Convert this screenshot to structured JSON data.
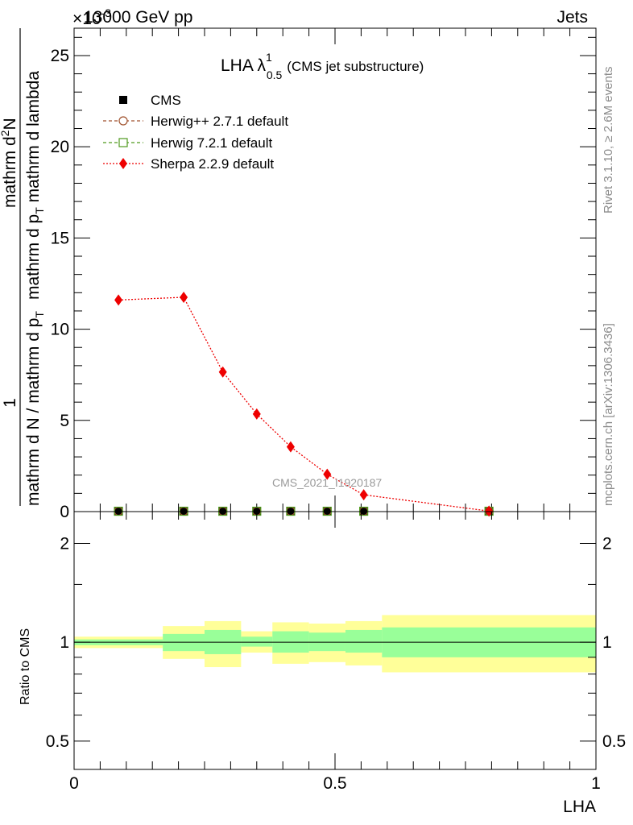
{
  "header": {
    "process": "13000 GeV pp",
    "category": "Jets",
    "exponent_label": "×10",
    "exponent_sup": "-3"
  },
  "side_text": {
    "rivet": "Rivet 3.1.10, ≥ 2.6M events",
    "site": "mcplots.cern.ch [arXiv:1306.3436]"
  },
  "watermark": "CMS_2021_I1920187",
  "chart_data": [
    {
      "type": "line",
      "title": "LHA λ",
      "title_sup": "1",
      "title_sub": "0.5",
      "title_suffix": "(CMS jet substructure)",
      "ylabel_numerator": "1",
      "ylabel_denominator": "mathrm d N / mathrm d p",
      "ylabel_denominator_sub": "T",
      "ylabel_right": "mathrm d",
      "ylabel_right_sup": "2",
      "ylabel_right_rest": "N",
      "ylabel_right_bottom": "mathrm d p",
      "ylabel_right_bottom_sub": "T",
      "ylabel_right_bottom_rest": " mathrm d lambda",
      "xlim": [
        0,
        1
      ],
      "ylim": [
        0,
        26.5
      ],
      "yticks": [
        0,
        5,
        10,
        15,
        20,
        25
      ],
      "ytick_labels": [
        "0",
        "5",
        "10",
        "15",
        "20",
        "25"
      ],
      "legend_position": "top-left",
      "series": [
        {
          "name": "CMS",
          "style": "marker-square",
          "color": "#000000",
          "x": [
            0.085,
            0.21,
            0.285,
            0.35,
            0.415,
            0.485,
            0.555,
            0.795
          ],
          "y": [
            0.02,
            0.02,
            0.02,
            0.02,
            0.02,
            0.02,
            0.02,
            0.02
          ]
        },
        {
          "name": "Herwig++ 2.7.1 default",
          "style": "dashed-circle",
          "color": "#a0522d",
          "x": [
            0.085,
            0.21,
            0.285,
            0.35,
            0.415,
            0.485,
            0.555,
            0.795
          ],
          "y": [
            0.02,
            0.02,
            0.02,
            0.02,
            0.02,
            0.02,
            0.02,
            0.02
          ]
        },
        {
          "name": "Herwig 7.2.1 default",
          "style": "dashed-square",
          "color": "#4f9a1e",
          "x": [
            0.085,
            0.21,
            0.285,
            0.35,
            0.415,
            0.485,
            0.555,
            0.795
          ],
          "y": [
            0.02,
            0.02,
            0.02,
            0.02,
            0.02,
            0.02,
            0.02,
            0.02
          ]
        },
        {
          "name": "Sherpa 2.2.9 default",
          "style": "dotted-diamond",
          "color": "#ee0000",
          "x": [
            0.085,
            0.21,
            0.285,
            0.35,
            0.415,
            0.485,
            0.555,
            0.795
          ],
          "y": [
            11.6,
            11.75,
            7.65,
            5.35,
            3.55,
            2.05,
            0.92,
            0.03
          ]
        }
      ]
    },
    {
      "type": "area",
      "ylabel": "Ratio to CMS",
      "xlabel": "LHA",
      "xlim": [
        0,
        1
      ],
      "ylim": [
        0.41,
        2.5
      ],
      "log_scale_y": true,
      "xticks": [
        0,
        0.5,
        1
      ],
      "xtick_labels": [
        "0",
        "0.5",
        "1"
      ],
      "yticks": [
        0.5,
        1,
        2
      ],
      "ytick_labels": [
        "0.5",
        "1",
        "2"
      ],
      "reference_line": 1,
      "bins": [
        {
          "x0": 0.0,
          "x1": 0.17,
          "yellow": [
            0.96,
            1.04
          ],
          "green": [
            0.98,
            1.02
          ]
        },
        {
          "x0": 0.17,
          "x1": 0.25,
          "yellow": [
            0.89,
            1.12
          ],
          "green": [
            0.94,
            1.06
          ]
        },
        {
          "x0": 0.25,
          "x1": 0.32,
          "yellow": [
            0.84,
            1.16
          ],
          "green": [
            0.92,
            1.09
          ]
        },
        {
          "x0": 0.32,
          "x1": 0.38,
          "yellow": [
            0.93,
            1.08
          ],
          "green": [
            0.97,
            1.04
          ]
        },
        {
          "x0": 0.38,
          "x1": 0.45,
          "yellow": [
            0.86,
            1.15
          ],
          "green": [
            0.93,
            1.08
          ]
        },
        {
          "x0": 0.45,
          "x1": 0.52,
          "yellow": [
            0.87,
            1.14
          ],
          "green": [
            0.94,
            1.07
          ]
        },
        {
          "x0": 0.52,
          "x1": 0.59,
          "yellow": [
            0.85,
            1.16
          ],
          "green": [
            0.93,
            1.09
          ]
        },
        {
          "x0": 0.59,
          "x1": 1.0,
          "yellow": [
            0.81,
            1.21
          ],
          "green": [
            0.9,
            1.11
          ]
        }
      ]
    }
  ],
  "colors": {
    "band_yellow": "#ffff99",
    "band_green": "#99ff99"
  }
}
